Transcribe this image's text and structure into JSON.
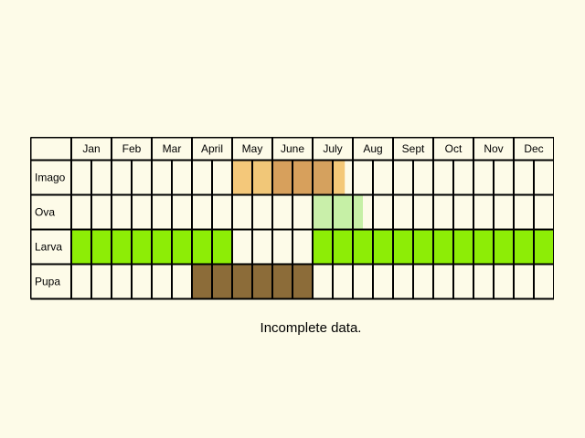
{
  "calendar": {
    "months": [
      "Jan",
      "Feb",
      "Mar",
      "April",
      "May",
      "June",
      "July",
      "Aug",
      "Sept",
      "Oct",
      "Nov",
      "Dec"
    ],
    "rows": [
      {
        "label": "Imago",
        "segments": [
          {
            "from": 4.0,
            "to": 4.5,
            "color": "#f4c87a"
          },
          {
            "from": 4.5,
            "to": 5.0,
            "color": "#f1c778"
          },
          {
            "from": 5.0,
            "to": 6.0,
            "color": "#d7a05c"
          },
          {
            "from": 6.0,
            "to": 6.5,
            "color": "#d5a15e"
          },
          {
            "from": 6.5,
            "to": 6.8,
            "color": "#f4c878"
          }
        ]
      },
      {
        "label": "Ova",
        "segments": [
          {
            "from": 6.0,
            "to": 6.5,
            "color": "#c9efaa"
          },
          {
            "from": 6.5,
            "to": 7.25,
            "color": "#c6f0a6"
          }
        ]
      },
      {
        "label": "Larva",
        "segments": [
          {
            "from": 0.0,
            "to": 4.0,
            "color": "#8ded06"
          },
          {
            "from": 6.0,
            "to": 12.0,
            "color": "#8ded06"
          }
        ]
      },
      {
        "label": "Pupa",
        "segments": [
          {
            "from": 3.0,
            "to": 4.0,
            "color": "#8c6c39"
          },
          {
            "from": 4.0,
            "to": 5.0,
            "color": "#8c6c39"
          },
          {
            "from": 5.0,
            "to": 6.0,
            "color": "#8c6c39"
          }
        ]
      }
    ],
    "grid_color": "#000000",
    "background_color": "#fdfbe8"
  },
  "footnote": "Incomplete data."
}
